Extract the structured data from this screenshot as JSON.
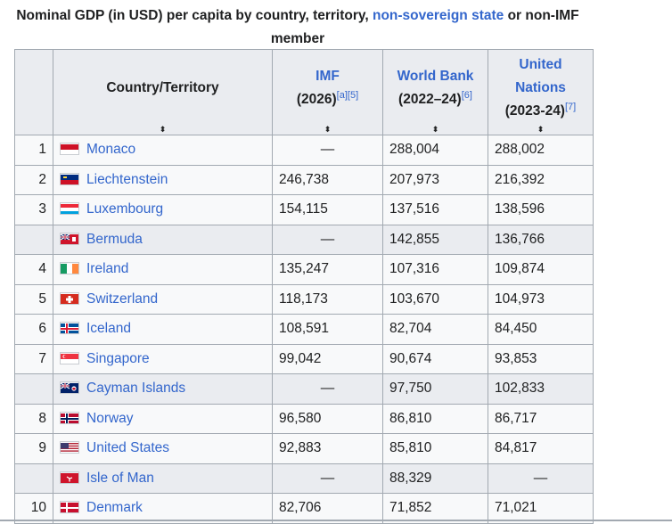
{
  "caption": {
    "text_before": "Nominal GDP (in USD) per capita by country, territory, ",
    "link": "non-sovereign state",
    "text_after": " or non-IMF member"
  },
  "headers": {
    "rank": "",
    "country": "Country/Territory",
    "imf_line1": "IMF",
    "imf_line2": "(2026)",
    "imf_refs": "[a][5]",
    "wb_line1": "World Bank",
    "wb_line2": "(2022–24)",
    "wb_refs": "[6]",
    "un_line1": "United",
    "un_line2": "Nations",
    "un_line3": "(2023-24)",
    "un_refs": "[7]",
    "sort_glyph": "⬍"
  },
  "rows": [
    {
      "rank": "1",
      "country": "Monaco",
      "imf": "—",
      "wb": "288,004",
      "un": "288,002",
      "flag": "monaco-flag",
      "nonsov": false
    },
    {
      "rank": "2",
      "country": "Liechtenstein",
      "imf": "246,738",
      "wb": "207,973",
      "un": "216,392",
      "flag": "liechtenstein-flag",
      "nonsov": false
    },
    {
      "rank": "3",
      "country": "Luxembourg",
      "imf": "154,115",
      "wb": "137,516",
      "un": "138,596",
      "flag": "luxembourg-flag",
      "nonsov": false
    },
    {
      "rank": "",
      "country": "Bermuda",
      "imf": "—",
      "wb": "142,855",
      "un": "136,766",
      "flag": "bermuda-flag",
      "nonsov": true
    },
    {
      "rank": "4",
      "country": "Ireland",
      "imf": "135,247",
      "wb": "107,316",
      "un": "109,874",
      "flag": "ireland-flag",
      "nonsov": false
    },
    {
      "rank": "5",
      "country": "Switzerland",
      "imf": "118,173",
      "wb": "103,670",
      "un": "104,973",
      "flag": "switzerland-flag",
      "nonsov": false
    },
    {
      "rank": "6",
      "country": "Iceland",
      "imf": "108,591",
      "wb": "82,704",
      "un": "84,450",
      "flag": "iceland-flag",
      "nonsov": false
    },
    {
      "rank": "7",
      "country": "Singapore",
      "imf": "99,042",
      "wb": "90,674",
      "un": "93,853",
      "flag": "singapore-flag",
      "nonsov": false
    },
    {
      "rank": "",
      "country": "Cayman Islands",
      "imf": "—",
      "wb": "97,750",
      "un": "102,833",
      "flag": "cayman-islands-flag",
      "nonsov": true
    },
    {
      "rank": "8",
      "country": "Norway",
      "imf": "96,580",
      "wb": "86,810",
      "un": "86,717",
      "flag": "norway-flag",
      "nonsov": false
    },
    {
      "rank": "9",
      "country": "United States",
      "imf": "92,883",
      "wb": "85,810",
      "un": "84,817",
      "flag": "united-states-flag",
      "nonsov": false
    },
    {
      "rank": "",
      "country": "Isle of Man",
      "imf": "—",
      "wb": "88,329",
      "un": "—",
      "flag": "isle-of-man-flag",
      "nonsov": true
    },
    {
      "rank": "10",
      "country": "Denmark",
      "imf": "82,706",
      "wb": "71,852",
      "un": "71,021",
      "flag": "denmark-flag",
      "nonsov": false
    }
  ],
  "colors": {
    "link": "#3366cc",
    "header_bg": "#eaecf0",
    "row_bg": "#f8f9fa",
    "border": "#a2a9b1"
  }
}
